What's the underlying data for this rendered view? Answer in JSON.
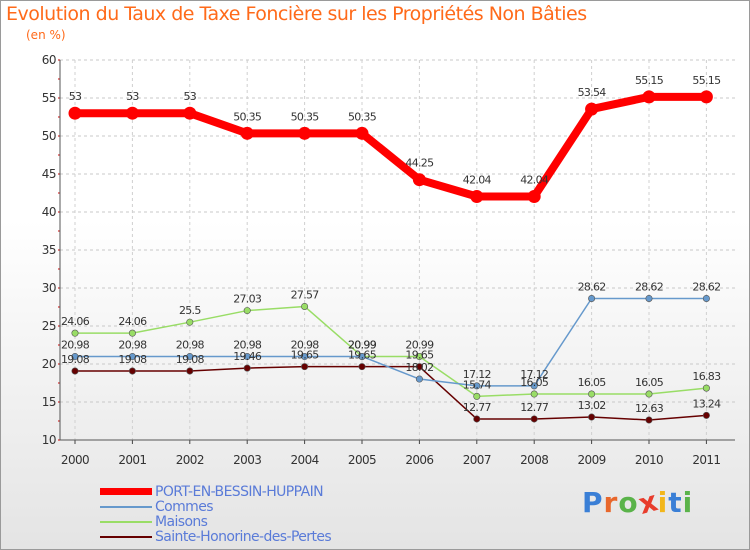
{
  "title": "Evolution du Taux de Taxe Foncière sur les Propriétés Non Bâties",
  "unit_label": "(en %)",
  "logo": {
    "letters": [
      "P",
      "r",
      "o",
      "x",
      "i",
      "t",
      "i"
    ],
    "colors": [
      "#3a7fd6",
      "#e8672c",
      "#5ab34a",
      "#e83c2c",
      "#f2b61a",
      "#3a7fd6",
      "#5ab34a"
    ]
  },
  "chart_data": {
    "type": "line",
    "title": "Evolution du Taux de Taxe Foncière sur les Propriétés Non Bâties",
    "ylabel": "(en %)",
    "xlabel": "",
    "ylim": [
      10,
      60
    ],
    "yticks": [
      "10",
      "15",
      "20",
      "25",
      "30",
      "35",
      "40",
      "45",
      "50",
      "55",
      "60"
    ],
    "yticks_values": [
      10,
      15,
      20,
      25,
      30,
      35,
      40,
      45,
      50,
      55,
      60
    ],
    "categories": [
      "2000",
      "2001",
      "2002",
      "2003",
      "2004",
      "2005",
      "2006",
      "2007",
      "2008",
      "2009",
      "2010",
      "2011"
    ],
    "grid": true,
    "legend_position": "bottom-left",
    "series": [
      {
        "name": "PORT-EN-BESSIN-HUPPAIN",
        "color": "#ff0000",
        "values": [
          53,
          53,
          53,
          50.35,
          50.35,
          50.35,
          44.25,
          42.04,
          42.04,
          53.54,
          55.15,
          55.15
        ],
        "labels": [
          "53",
          "53",
          "53",
          "50.35",
          "50.35",
          "50.35",
          "44.25",
          "42.04",
          "42.04",
          "53.54",
          "55.15",
          "55.15"
        ]
      },
      {
        "name": "Commes",
        "color": "#6699cc",
        "values": [
          20.98,
          20.98,
          20.98,
          20.98,
          20.98,
          20.99,
          18.02,
          17.12,
          17.12,
          28.62,
          28.62,
          28.62
        ],
        "labels": [
          "20.98",
          "20.98",
          "20.98",
          "20.98",
          "20.98",
          "20.99",
          "18.02",
          "17.12",
          "17.12",
          "28.62",
          "28.62",
          "28.62"
        ]
      },
      {
        "name": "Maisons",
        "color": "#99dd66",
        "values": [
          24.06,
          24.06,
          25.5,
          27.03,
          27.57,
          20.99,
          20.99,
          15.74,
          16.05,
          16.05,
          16.05,
          16.83
        ],
        "labels": [
          "24.06",
          "24.06",
          "25.5",
          "27.03",
          "27.57",
          "20.99",
          "20.99",
          "15.74",
          "16.05",
          "16.05",
          "16.05",
          "16.83"
        ]
      },
      {
        "name": "Sainte-Honorine-des-Pertes",
        "color": "#660000",
        "values": [
          19.08,
          19.08,
          19.08,
          19.46,
          19.65,
          19.65,
          19.65,
          12.77,
          12.77,
          13.02,
          12.63,
          13.24
        ],
        "labels": [
          "19.08",
          "19.08",
          "19.08",
          "19.46",
          "19.65",
          "19.65",
          "19.65",
          "12.77",
          "12.77",
          "13.02",
          "12.63",
          "13.24"
        ]
      }
    ]
  }
}
